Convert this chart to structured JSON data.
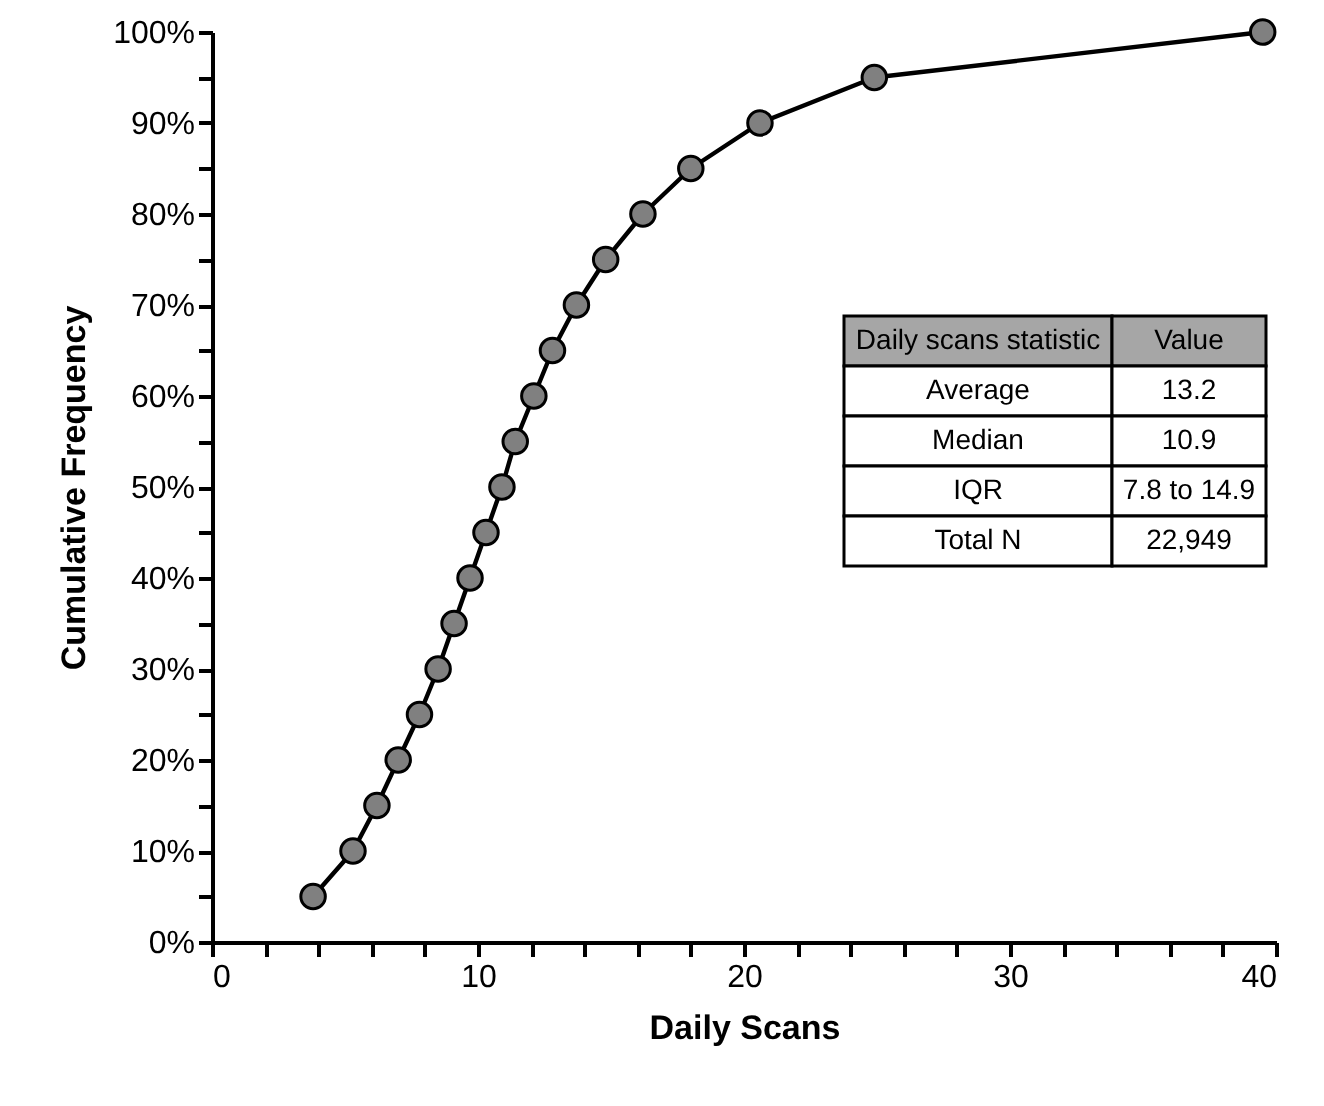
{
  "chart_data": {
    "type": "line",
    "xlabel": "Daily Scans",
    "ylabel": "Cumulative Frequency",
    "x": [
      3.8,
      5.3,
      6.2,
      7.0,
      7.8,
      8.5,
      9.1,
      9.7,
      10.3,
      10.9,
      11.4,
      12.1,
      12.8,
      13.7,
      14.8,
      16.2,
      18.0,
      20.6,
      24.9,
      39.5
    ],
    "series": [
      {
        "color": "#808080",
        "values": [
          5,
          10,
          15,
          20,
          25,
          30,
          35,
          40,
          45,
          50,
          55,
          60,
          65,
          70,
          75,
          80,
          85,
          90,
          95,
          100
        ]
      }
    ],
    "marker": "circle",
    "line_style": "solid",
    "grid": false,
    "xlim": [
      0,
      40
    ],
    "xticks": [
      0,
      {
        "value": 2,
        "label": null
      },
      {
        "value": 4,
        "label": null
      },
      {
        "value": 6,
        "label": null
      },
      {
        "value": 8,
        "label": null
      },
      10,
      {
        "value": 12,
        "label": null
      },
      {
        "value": 14,
        "label": null
      },
      {
        "value": 16,
        "label": null
      },
      {
        "value": 18,
        "label": null
      },
      20,
      {
        "value": 22,
        "label": null
      },
      {
        "value": 24,
        "label": null
      },
      {
        "value": 26,
        "label": null
      },
      {
        "value": 28,
        "label": null
      },
      30,
      {
        "value": 32,
        "label": null
      },
      {
        "value": 34,
        "label": null
      },
      {
        "value": 36,
        "label": null
      },
      {
        "value": 38,
        "label": null
      },
      40
    ],
    "ylim": [
      0,
      100
    ],
    "yticks": [
      {
        "value": 0,
        "label": "0%"
      },
      {
        "value": 5,
        "label": null
      },
      {
        "value": 10,
        "label": "10%"
      },
      {
        "value": 15,
        "label": null
      },
      {
        "value": 20,
        "label": "20%"
      },
      {
        "value": 25,
        "label": null
      },
      {
        "value": 30,
        "label": "30%"
      },
      {
        "value": 35,
        "label": null
      },
      {
        "value": 40,
        "label": "40%"
      },
      {
        "value": 45,
        "label": null
      },
      {
        "value": 50,
        "label": "50%"
      },
      {
        "value": 55,
        "label": null
      },
      {
        "value": 60,
        "label": "60%"
      },
      {
        "value": 65,
        "label": null
      },
      {
        "value": 70,
        "label": "70%"
      },
      {
        "value": 75,
        "label": null
      },
      {
        "value": 80,
        "label": "80%"
      },
      {
        "value": 85,
        "label": null
      },
      {
        "value": 90,
        "label": "90%"
      },
      {
        "value": 95,
        "label": null
      },
      {
        "value": 100,
        "label": "100%"
      }
    ],
    "annotations": [
      "Daily scans statistic",
      "Value",
      "Average",
      "13.2",
      "Median",
      "10.9",
      "IQR",
      "7.8 to 14.9",
      "Total N",
      "22,949"
    ]
  }
}
